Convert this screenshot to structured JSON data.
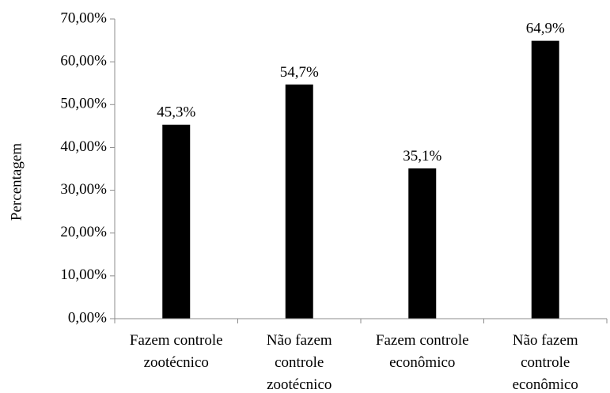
{
  "chart_data": {
    "type": "bar",
    "categories": [
      [
        "Fazem controle",
        "zootécnico"
      ],
      [
        "Não fazem",
        "controle",
        "zootécnico"
      ],
      [
        "Fazem controle",
        "econômico"
      ],
      [
        "Não fazem",
        "controle",
        "econômico"
      ]
    ],
    "values": [
      45.3,
      54.7,
      35.1,
      64.9
    ],
    "data_labels": [
      "45,3%",
      "54,7%",
      "35,1%",
      "64,9%"
    ],
    "ylabel": "Percentagem",
    "xlabel": "",
    "title": "",
    "ylim": [
      0,
      70
    ],
    "yticks": [
      0,
      10,
      20,
      30,
      40,
      50,
      60,
      70
    ],
    "ytick_labels": [
      "0,00%",
      "10,00%",
      "20,00%",
      "30,00%",
      "40,00%",
      "50,00%",
      "60,00%",
      "70,00%"
    ],
    "grid": false,
    "legend": "none",
    "bar_color": "#000000"
  }
}
